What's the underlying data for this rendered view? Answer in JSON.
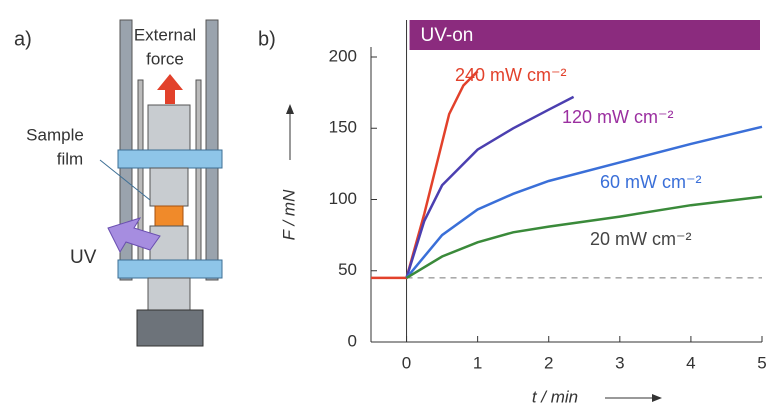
{
  "diagram": {
    "label": "a)",
    "force_label": [
      "External",
      "force"
    ],
    "sample_label": [
      "Sample",
      "film"
    ],
    "uv_label": "UV"
  },
  "chart_data": {
    "type": "line",
    "panel_label": "b)",
    "x_label": "t / min",
    "y_label": "F / mN",
    "xlim": [
      -0.5,
      5
    ],
    "xticks": [
      0,
      1,
      2,
      3,
      4,
      5
    ],
    "ylim": [
      0,
      200
    ],
    "yticks": [
      0,
      50,
      100,
      150,
      200
    ],
    "hline": 45,
    "uv_bar": {
      "label": "UV-on",
      "start": 0,
      "color": "#8b2b7e"
    },
    "series": [
      {
        "name": "240 mW cm⁻²",
        "color": "#e2412b",
        "label_color": "#e2412b",
        "x": [
          -0.5,
          0,
          0.25,
          0.5,
          0.6,
          0.8,
          1.0
        ],
        "values": [
          45,
          45,
          90,
          140,
          160,
          180,
          190
        ]
      },
      {
        "name": "120 mW cm⁻²",
        "color": "#4b3fb0",
        "label_color": "#9b2fa0",
        "x": [
          0,
          0.25,
          0.5,
          1,
          1.5,
          2,
          2.35
        ],
        "values": [
          45,
          85,
          110,
          135,
          150,
          163,
          172
        ]
      },
      {
        "name": "60 mW cm⁻²",
        "color": "#3a6fd8",
        "label_color": "#3a6fd8",
        "x": [
          0,
          0.5,
          1,
          1.5,
          2,
          3,
          4,
          5
        ],
        "values": [
          45,
          75,
          93,
          104,
          113,
          126,
          139,
          151
        ]
      },
      {
        "name": "20 mW cm⁻²",
        "color": "#3a8a3a",
        "label_color": "#444444",
        "x": [
          0,
          0.5,
          1,
          1.5,
          2,
          3,
          4,
          5
        ],
        "values": [
          45,
          60,
          70,
          77,
          81,
          88,
          96,
          102
        ]
      }
    ]
  }
}
